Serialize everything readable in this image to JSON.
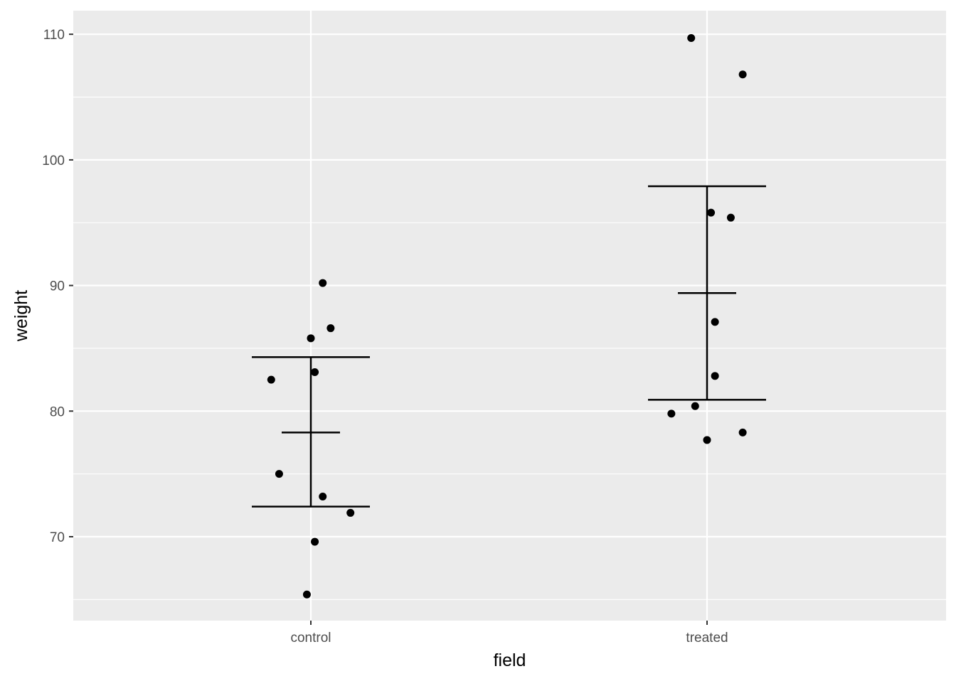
{
  "colors": {
    "panel_background": "#ebebeb",
    "grid_major": "#ffffff",
    "grid_minor": "#f5f5f5",
    "points": "#000000",
    "errorbar": "#000000",
    "tick_text": "#4d4d4d",
    "tick_mark": "#333333"
  },
  "chart_data": {
    "type": "scatter",
    "title": "",
    "xlabel": "field",
    "ylabel": "weight",
    "categories": [
      "control",
      "treated"
    ],
    "ylim": [
      63.5,
      112
    ],
    "yticks": [
      70,
      80,
      90,
      100,
      110
    ],
    "grid": true,
    "legend": "none",
    "points": [
      {
        "category": "control",
        "jitter": 0.03,
        "y": 90.2
      },
      {
        "category": "control",
        "jitter": 0.05,
        "y": 86.6
      },
      {
        "category": "control",
        "jitter": 0.0,
        "y": 85.8
      },
      {
        "category": "control",
        "jitter": 0.01,
        "y": 83.1
      },
      {
        "category": "control",
        "jitter": -0.1,
        "y": 82.5
      },
      {
        "category": "control",
        "jitter": -0.08,
        "y": 75.0
      },
      {
        "category": "control",
        "jitter": 0.03,
        "y": 73.2
      },
      {
        "category": "control",
        "jitter": 0.1,
        "y": 71.9
      },
      {
        "category": "control",
        "jitter": 0.01,
        "y": 69.6
      },
      {
        "category": "control",
        "jitter": -0.01,
        "y": 65.4
      },
      {
        "category": "treated",
        "jitter": -0.04,
        "y": 109.7
      },
      {
        "category": "treated",
        "jitter": 0.09,
        "y": 106.8
      },
      {
        "category": "treated",
        "jitter": 0.01,
        "y": 95.8
      },
      {
        "category": "treated",
        "jitter": 0.06,
        "y": 95.4
      },
      {
        "category": "treated",
        "jitter": 0.02,
        "y": 87.1
      },
      {
        "category": "treated",
        "jitter": 0.02,
        "y": 82.8
      },
      {
        "category": "treated",
        "jitter": -0.03,
        "y": 80.4
      },
      {
        "category": "treated",
        "jitter": -0.09,
        "y": 79.8
      },
      {
        "category": "treated",
        "jitter": 0.09,
        "y": 78.3
      },
      {
        "category": "treated",
        "jitter": 0.0,
        "y": 77.7
      }
    ],
    "summary": [
      {
        "category": "control",
        "mean": 78.3,
        "lower": 72.4,
        "upper": 84.3
      },
      {
        "category": "treated",
        "mean": 89.4,
        "lower": 80.9,
        "upper": 97.9
      }
    ]
  }
}
